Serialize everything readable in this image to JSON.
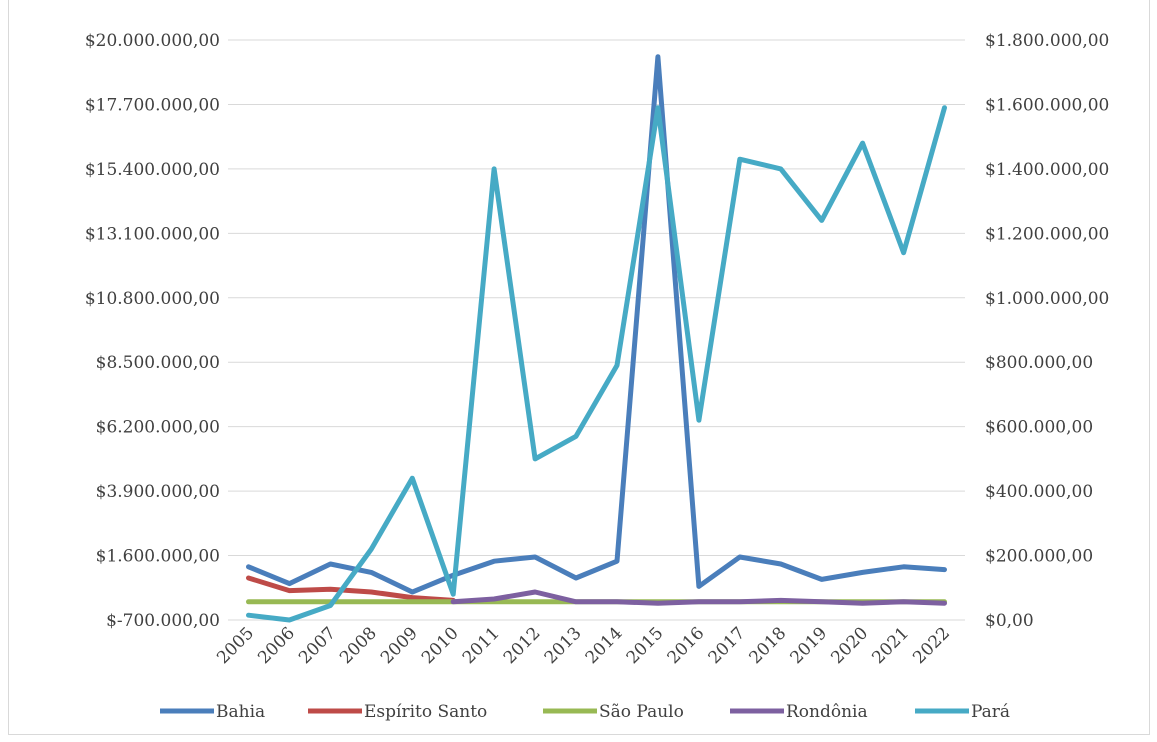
{
  "chart_data": {
    "type": "line",
    "categories": [
      "2005",
      "2006",
      "2007",
      "2008",
      "2009",
      "2010",
      "2011",
      "2012",
      "2013",
      "2014",
      "2015",
      "2016",
      "2017",
      "2018",
      "2019",
      "2020",
      "2021",
      "2022"
    ],
    "left_axis": {
      "ylim": [
        -700000,
        20000000
      ],
      "ticks": [
        -700000,
        1600000,
        3900000,
        6200000,
        8500000,
        10800000,
        13100000,
        15400000,
        17700000,
        20000000
      ],
      "tick_labels": [
        "$-700.000,00",
        "$1.600.000,00",
        "$3.900.000,00",
        "$6.200.000,00",
        "$8.500.000,00",
        "$10.800.000,00",
        "$13.100.000,00",
        "$15.400.000,00",
        "$17.700.000,00",
        "$20.000.000,00"
      ]
    },
    "right_axis": {
      "ylim": [
        0,
        1800000
      ],
      "ticks": [
        0,
        200000,
        400000,
        600000,
        800000,
        1000000,
        1200000,
        1400000,
        1600000,
        1800000
      ],
      "tick_labels": [
        "$0,00",
        "$200.000,00",
        "$400.000,00",
        "$600.000,00",
        "$800.000,00",
        "$1.000.000,00",
        "$1.200.000,00",
        "$1.400.000,00",
        "$1.600.000,00",
        "$1.800.000,00"
      ]
    },
    "series": [
      {
        "name": "Bahia",
        "axis": "left",
        "color": "#4a7ebb",
        "values": [
          1200000,
          600000,
          1300000,
          1000000,
          300000,
          900000,
          1400000,
          1550000,
          800000,
          1400000,
          19400000,
          500000,
          1550000,
          1300000,
          750000,
          1000000,
          1200000,
          1100000
        ]
      },
      {
        "name": "Espírito Santo",
        "axis": "left",
        "color": "#be4b48",
        "values": [
          800000,
          350000,
          400000,
          300000,
          100000,
          0,
          null,
          null,
          null,
          null,
          null,
          null,
          null,
          null,
          null,
          null,
          null,
          null
        ]
      },
      {
        "name": "São Paulo",
        "axis": "left",
        "color": "#98b954",
        "values": [
          -50000,
          -50000,
          -50000,
          -50000,
          -50000,
          -50000,
          -50000,
          -50000,
          -50000,
          -50000,
          -50000,
          -50000,
          -50000,
          -50000,
          -50000,
          -50000,
          -50000,
          -50000
        ]
      },
      {
        "name": "Rondônia",
        "axis": "left",
        "color": "#7d60a0",
        "values": [
          null,
          null,
          null,
          null,
          null,
          -50000,
          50000,
          300000,
          -50000,
          -50000,
          -100000,
          -50000,
          -50000,
          0,
          -50000,
          -100000,
          -50000,
          -100000
        ]
      },
      {
        "name": "Pará",
        "axis": "right",
        "color": "#46aac5",
        "values": [
          15000,
          0,
          45000,
          220000,
          440000,
          80000,
          1400000,
          500000,
          570000,
          790000,
          1590000,
          620000,
          1430000,
          1400000,
          1240000,
          1480000,
          1140000,
          1590000
        ]
      }
    ],
    "legend_position": "bottom",
    "grid": true
  }
}
